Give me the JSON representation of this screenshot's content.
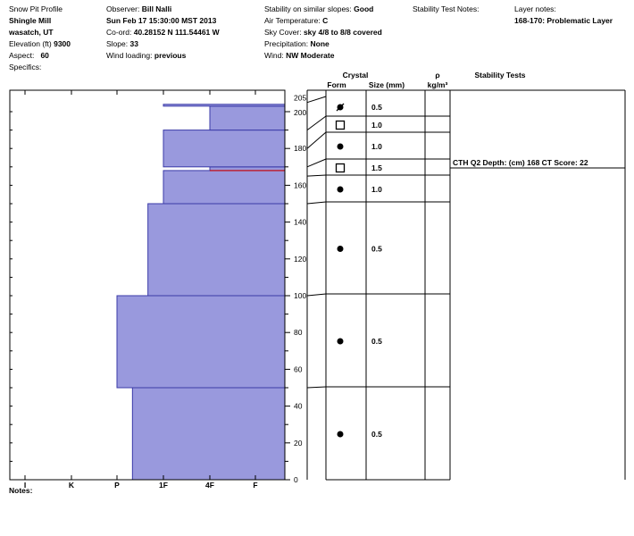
{
  "header": {
    "col1": {
      "title": "Snow Pit Profile",
      "location": "Shingle Mill",
      "state": "wasatch, UT",
      "elevation_label": "Elevation (ft)",
      "elevation": "9300",
      "aspect_label": "Aspect:",
      "aspect": "60",
      "specifics_label": "Specifics:"
    },
    "col2": {
      "observer_label": "Observer:",
      "observer": "Bill Nalli",
      "datetime": "Sun Feb 17 15:30:00 MST 2013",
      "coord_label": "Co-ord:",
      "coord": "40.28152 N 111.54461 W",
      "slope_label": "Slope:",
      "slope": "33",
      "wind_loading_label": "Wind loading:",
      "wind_loading": "previous"
    },
    "col3": {
      "stability_label": "Stability on similar slopes:",
      "stability": "Good",
      "air_temp_label": "Air Temperature:",
      "air_temp": "C",
      "sky_label": "Sky Cover:",
      "sky": "sky 4/8 to 8/8 covered",
      "precip_label": "Precipitation:",
      "precip": "None",
      "wind_label": "Wind:",
      "wind": "NW Moderate"
    },
    "col4": {
      "label": "Stability Test Notes:"
    },
    "col5": {
      "label": "Layer notes:",
      "note": "168-170: Problematic Layer"
    }
  },
  "table_headers": {
    "crystal": "Crystal",
    "form": "Form",
    "size": "Size (mm)",
    "rho": "ρ",
    "density_unit": "kg/m³",
    "stability_tests": "Stability Tests"
  },
  "notes_label": "Notes:",
  "colors": {
    "fill": "#9999dd",
    "stroke": "#3a3aa8",
    "highlight": "#cc0000"
  },
  "chart_data": {
    "type": "bar",
    "orientation": "horizontal-step",
    "y_axis": {
      "range": [
        0,
        205
      ],
      "ticks": [
        0,
        20,
        40,
        60,
        80,
        100,
        120,
        140,
        160,
        180,
        200,
        205
      ]
    },
    "x_axis": {
      "categories": [
        "I",
        "K",
        "P",
        "1F",
        "4F",
        "F"
      ]
    },
    "hardness_layers": [
      {
        "bottom": 0,
        "top": 50,
        "hardness": "P-"
      },
      {
        "bottom": 50,
        "top": 100,
        "hardness": "P"
      },
      {
        "bottom": 100,
        "top": 150,
        "hardness": "1F+"
      },
      {
        "bottom": 150,
        "top": 168,
        "hardness": "1F"
      },
      {
        "bottom": 168,
        "top": 170,
        "hardness": "4F"
      },
      {
        "bottom": 170,
        "top": 190,
        "hardness": "1F"
      },
      {
        "bottom": 190,
        "top": 203,
        "hardness": "4F"
      },
      {
        "bottom": 203,
        "top": 204,
        "hardness": "1F"
      }
    ],
    "highlight_depth": 168,
    "crystal_rows": [
      {
        "top": 205,
        "bottom": 190,
        "form": "rounding-faceted",
        "size": "0.5"
      },
      {
        "top": 190,
        "bottom": 180,
        "form": "faceted",
        "size": "1.0"
      },
      {
        "top": 180,
        "bottom": 170,
        "form": "rounded",
        "size": "1.0"
      },
      {
        "top": 170,
        "bottom": 165,
        "form": "faceted",
        "size": "1.5"
      },
      {
        "top": 165,
        "bottom": 150,
        "form": "rounded",
        "size": "1.0"
      },
      {
        "top": 150,
        "bottom": 100,
        "form": "rounded",
        "size": "0.5"
      },
      {
        "top": 100,
        "bottom": 50,
        "form": "rounded",
        "size": "0.5"
      },
      {
        "top": 50,
        "bottom": 0,
        "form": "rounded",
        "size": "0.5"
      }
    ],
    "stability_tests": [
      {
        "depth": 168,
        "text": "CTH Q2 Depth: (cm) 168 CT Score: 22"
      }
    ]
  }
}
